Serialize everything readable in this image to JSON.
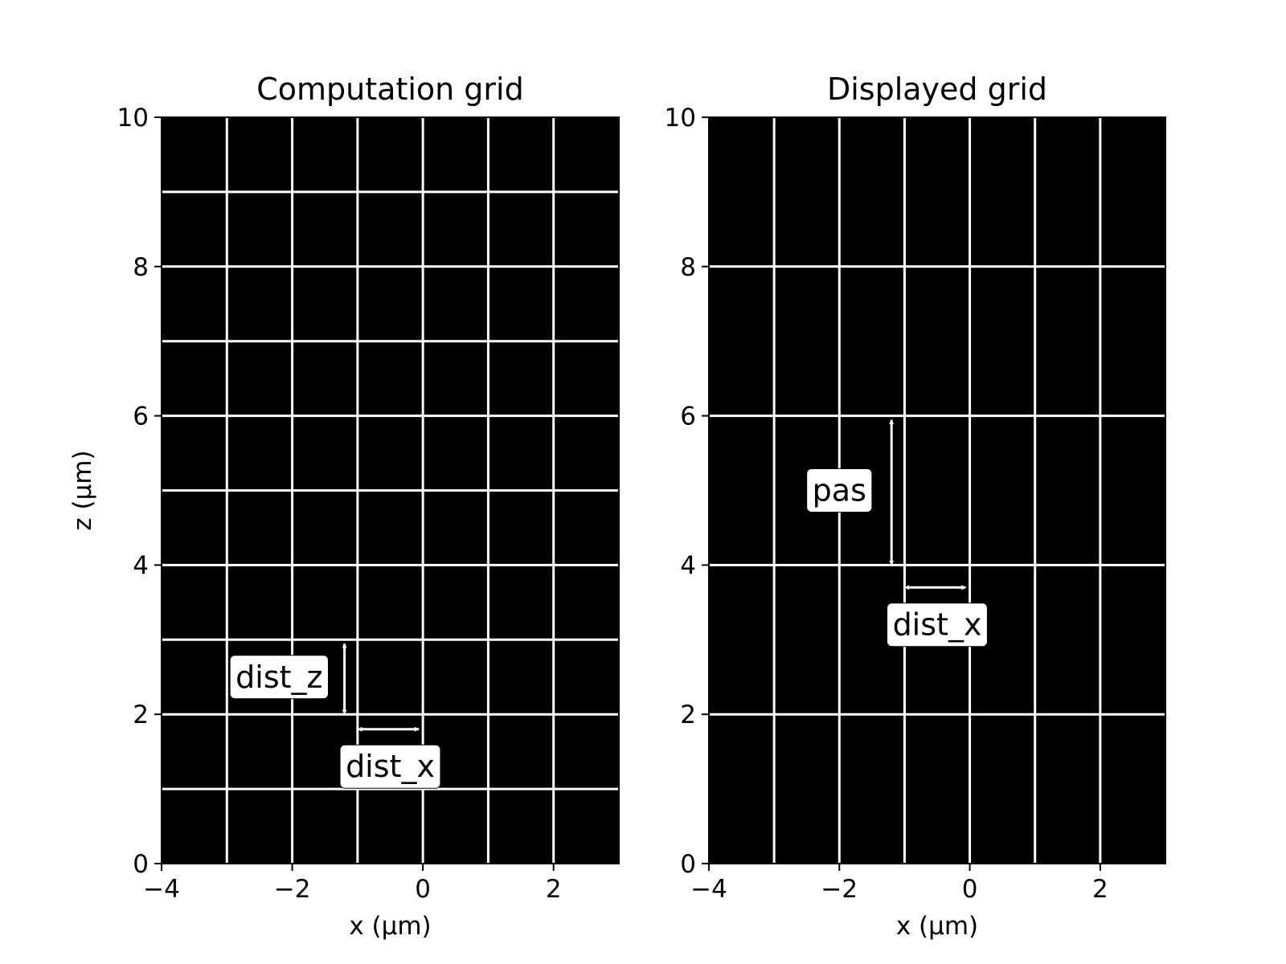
{
  "chart_data": [
    {
      "type": "heatmap",
      "title": "Computation grid",
      "xlabel": "x (µm)",
      "ylabel": "z (µm)",
      "xlim": [
        -4,
        3
      ],
      "ylim": [
        0,
        10
      ],
      "xticks": [
        -4,
        -2,
        0,
        2
      ],
      "yticks": [
        0,
        2,
        4,
        6,
        8,
        10
      ],
      "background": "#000000",
      "grid_color": "#ffffff",
      "vlines": [
        -3,
        -2,
        -1,
        0,
        1,
        2
      ],
      "hlines": [
        1,
        2,
        3,
        4,
        5,
        6,
        7,
        8,
        9
      ],
      "annotations": [
        {
          "text": "dist_z",
          "label_at": [
            -2.2,
            2.5
          ],
          "arrow": {
            "from": [
              -1.2,
              2.0
            ],
            "to": [
              -1.2,
              3.0
            ]
          }
        },
        {
          "text": "dist_x",
          "label_at": [
            -0.5,
            1.3
          ],
          "arrow": {
            "from": [
              -1.0,
              1.8
            ],
            "to": [
              0.0,
              1.8
            ]
          }
        }
      ]
    },
    {
      "type": "heatmap",
      "title": "Displayed grid",
      "xlabel": "x (µm)",
      "ylabel": "",
      "xlim": [
        -4,
        3
      ],
      "ylim": [
        0,
        10
      ],
      "xticks": [
        -4,
        -2,
        0,
        2
      ],
      "yticks": [
        0,
        2,
        4,
        6,
        8,
        10
      ],
      "background": "#000000",
      "grid_color": "#ffffff",
      "vlines": [
        -3,
        -2,
        -1,
        0,
        1,
        2
      ],
      "hlines": [
        2,
        4,
        6,
        8
      ],
      "annotations": [
        {
          "text": "pas",
          "label_at": [
            -2.0,
            5.0
          ],
          "arrow": {
            "from": [
              -1.2,
              4.0
            ],
            "to": [
              -1.2,
              6.0
            ]
          }
        },
        {
          "text": "dist_x",
          "label_at": [
            -0.5,
            3.2
          ],
          "arrow": {
            "from": [
              -1.0,
              3.7
            ],
            "to": [
              0.0,
              3.7
            ]
          }
        }
      ]
    }
  ]
}
